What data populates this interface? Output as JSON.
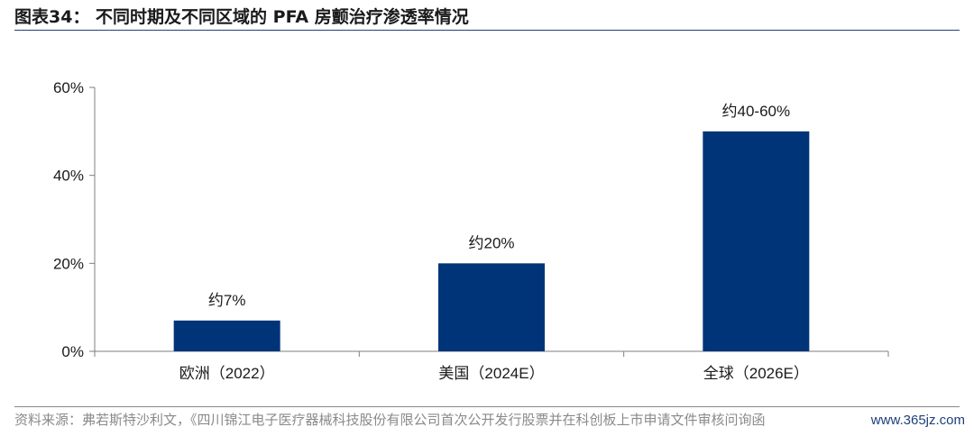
{
  "header": {
    "title": "图表34： 不同时期及不同区域的 PFA 房颤治疗渗透率情况"
  },
  "footer": {
    "source": "资料来源：弗若斯特沙利文，《四川锦江电子医疗器械科技股份有限公司首次公开发行股票并在科创板上市申请文件审核问询函",
    "watermark": "www.365jz.com"
  },
  "chart_data": {
    "type": "bar",
    "categories": [
      "欧洲（2022）",
      "美国（2024E）",
      "全球（2026E）"
    ],
    "values": [
      7,
      20,
      50
    ],
    "data_labels": [
      "约7%",
      "约20%",
      "约40-60%"
    ],
    "ylim": [
      0,
      60
    ],
    "yticks": [
      "0%",
      "20%",
      "40%",
      "60%"
    ],
    "ytick_values": [
      0,
      20,
      40,
      60
    ],
    "bar_color": "#003478",
    "grid": false,
    "title": "",
    "xlabel": "",
    "ylabel": ""
  }
}
